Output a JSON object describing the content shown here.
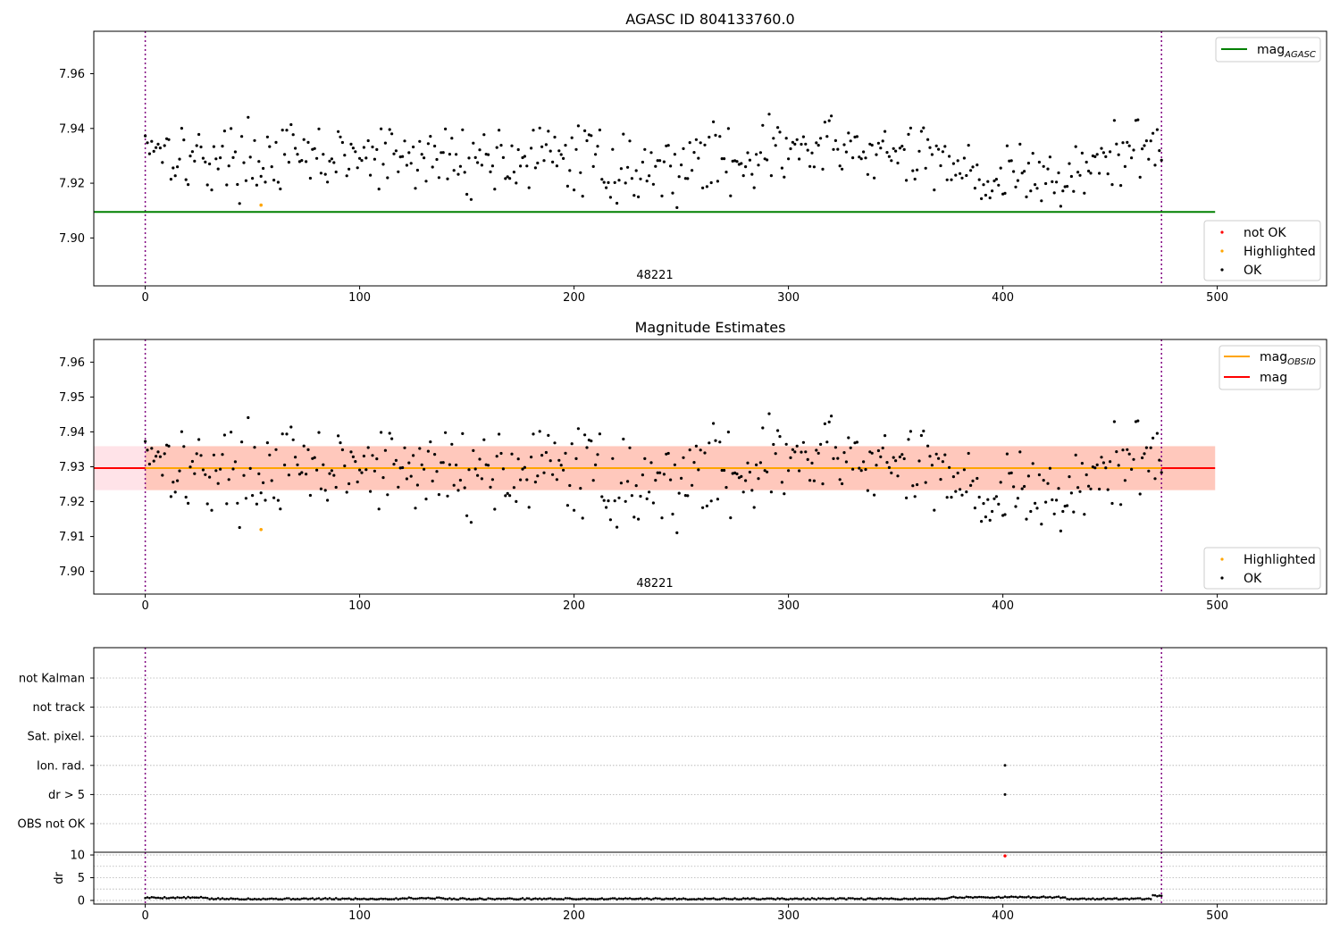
{
  "chart_data": [
    {
      "id": "top",
      "type": "scatter",
      "title": "AGASC ID 804133760.0",
      "annotation": "48221",
      "xlim": [
        -24,
        551
      ],
      "ylim": [
        7.8825,
        7.9755
      ],
      "xticks": [
        0,
        100,
        200,
        300,
        400,
        500
      ],
      "yticks": [
        7.9,
        7.92,
        7.94,
        7.96
      ],
      "ytick_labels": [
        "7.90",
        "7.92",
        "7.94",
        "7.96"
      ],
      "vlines": [
        0,
        474
      ],
      "hlines": [
        {
          "y": 7.9095,
          "x0": -24,
          "x1": 499,
          "color": "#008000"
        }
      ],
      "highlighted_points": [
        {
          "x": 54,
          "y": 7.912
        }
      ],
      "ok_points_generator": {
        "n": 475,
        "seed": 17,
        "level": 7.929
      },
      "legend_lines": {
        "position": "top-right",
        "entries": [
          {
            "label": "mag",
            "sub": "AGASC",
            "color": "#008000"
          }
        ]
      },
      "legend_markers": {
        "position": "bottom-right",
        "entries": [
          {
            "label": "not OK",
            "color": "#ff0000"
          },
          {
            "label": "Highlighted",
            "color": "#ffa500"
          },
          {
            "label": "OK",
            "color": "#000000"
          }
        ]
      }
    },
    {
      "id": "middle",
      "type": "scatter",
      "title": "Magnitude Estimates",
      "annotation": "48221",
      "xlim": [
        -24,
        551
      ],
      "ylim": [
        7.8935,
        7.9665
      ],
      "xticks": [
        0,
        100,
        200,
        300,
        400,
        500
      ],
      "yticks": [
        7.9,
        7.91,
        7.92,
        7.93,
        7.94,
        7.95,
        7.96
      ],
      "ytick_labels": [
        "7.90",
        "7.91",
        "7.92",
        "7.93",
        "7.94",
        "7.95",
        "7.96"
      ],
      "vlines": [
        0,
        474
      ],
      "bands": [
        {
          "y0": 7.9233,
          "y1": 7.9359,
          "x0": -24,
          "x1": 499,
          "color": "#ffc0cb",
          "opacity": 0.45
        },
        {
          "y0": 7.9233,
          "y1": 7.9359,
          "x0": 0,
          "x1": 499,
          "color": "#ffa07a",
          "opacity": 0.4
        }
      ],
      "hlines": [
        {
          "y": 7.9296,
          "x0": -24,
          "x1": 499,
          "color": "#ff0000"
        },
        {
          "y": 7.9296,
          "x0": 0,
          "x1": 474,
          "color": "#ffa500"
        }
      ],
      "highlighted_points": [
        {
          "x": 54,
          "y": 7.912
        }
      ],
      "ok_points_generator": {
        "n": 475,
        "seed": 17,
        "level": 7.929
      },
      "legend_lines": {
        "position": "top-right",
        "entries": [
          {
            "label": "mag",
            "sub": "OBSID",
            "color": "#ffa500"
          },
          {
            "label": "mag",
            "sub": "",
            "color": "#ff0000"
          }
        ]
      },
      "legend_markers": {
        "position": "bottom-right",
        "entries": [
          {
            "label": "Highlighted",
            "color": "#ffa500"
          },
          {
            "label": "OK",
            "color": "#000000"
          }
        ]
      }
    },
    {
      "id": "flags",
      "type": "scatter",
      "xlim": [
        -24,
        551
      ],
      "categories": [
        "not Kalman",
        "not track",
        "Sat. pixel.",
        "Ion. rad.",
        "dr > 5",
        "OBS not OK"
      ],
      "vlines": [
        0,
        474
      ],
      "flag_points": [
        {
          "x": 401,
          "category": "Ion. rad."
        },
        {
          "x": 401,
          "category": "dr > 5"
        }
      ]
    },
    {
      "id": "dr",
      "type": "scatter",
      "ylabel": "dr",
      "xlim": [
        -24,
        551
      ],
      "ylim": [
        -0.8,
        10.6
      ],
      "xticks": [
        0,
        100,
        200,
        300,
        400,
        500
      ],
      "yticks": [
        0,
        5,
        10
      ],
      "vlines": [
        0,
        474
      ],
      "dr_generator": {
        "n": 475,
        "seed": 5
      },
      "outlier_points": [
        {
          "x": 401,
          "y": 9.8
        }
      ]
    }
  ]
}
